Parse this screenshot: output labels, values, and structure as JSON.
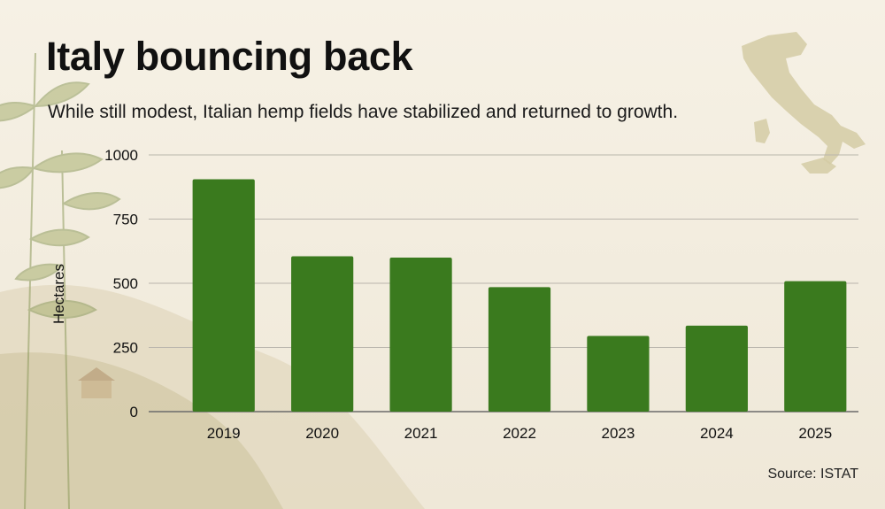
{
  "title": "Italy bouncing back",
  "subtitle": "While still modest, Italian hemp fields have stabilized and returned to growth.",
  "source": "Source: ISTAT",
  "colors": {
    "bar": "#3a7a1e",
    "grid": "#b9b5ac",
    "axis": "#6b6b6b"
  },
  "decor": {
    "map": "italy-map-icon",
    "plants": "hemp-plant-illustration"
  },
  "chart_data": {
    "type": "bar",
    "title": "",
    "xlabel": "",
    "ylabel": "Hectares",
    "categories": [
      "2019",
      "2020",
      "2021",
      "2022",
      "2023",
      "2024",
      "2025"
    ],
    "values": [
      905,
      605,
      600,
      485,
      295,
      335,
      508
    ],
    "ylim": [
      0,
      1000
    ],
    "yticks": [
      "0",
      "250",
      "500",
      "750",
      "1000"
    ],
    "grid": true,
    "legend": "none"
  }
}
